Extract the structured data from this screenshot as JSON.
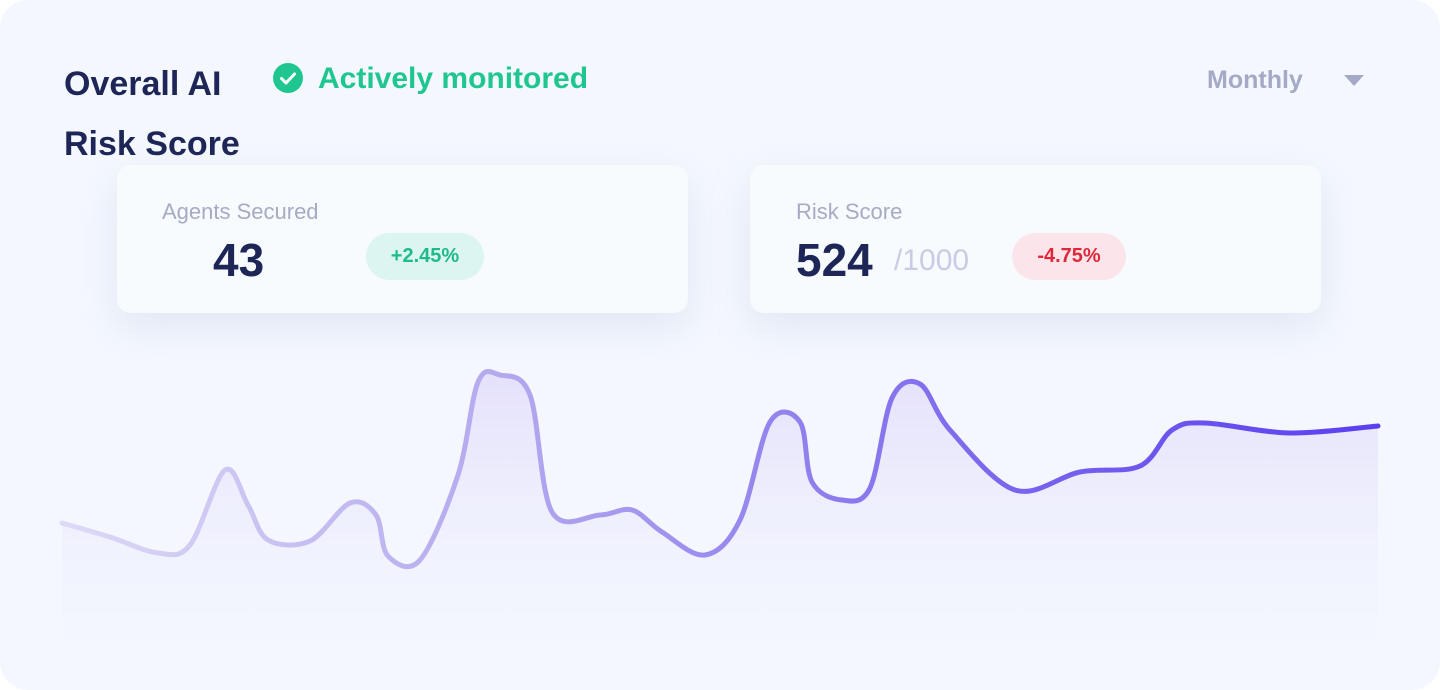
{
  "header": {
    "title": "Overall AI Risk Score",
    "status": "Actively monitored",
    "period": "Monthly"
  },
  "cards": [
    {
      "label": "Agents Secured",
      "value": 43,
      "change": "+2.45%"
    },
    {
      "label": "Risk Score",
      "value": 524,
      "max": "/1000",
      "change": "-4.75%"
    }
  ]
}
